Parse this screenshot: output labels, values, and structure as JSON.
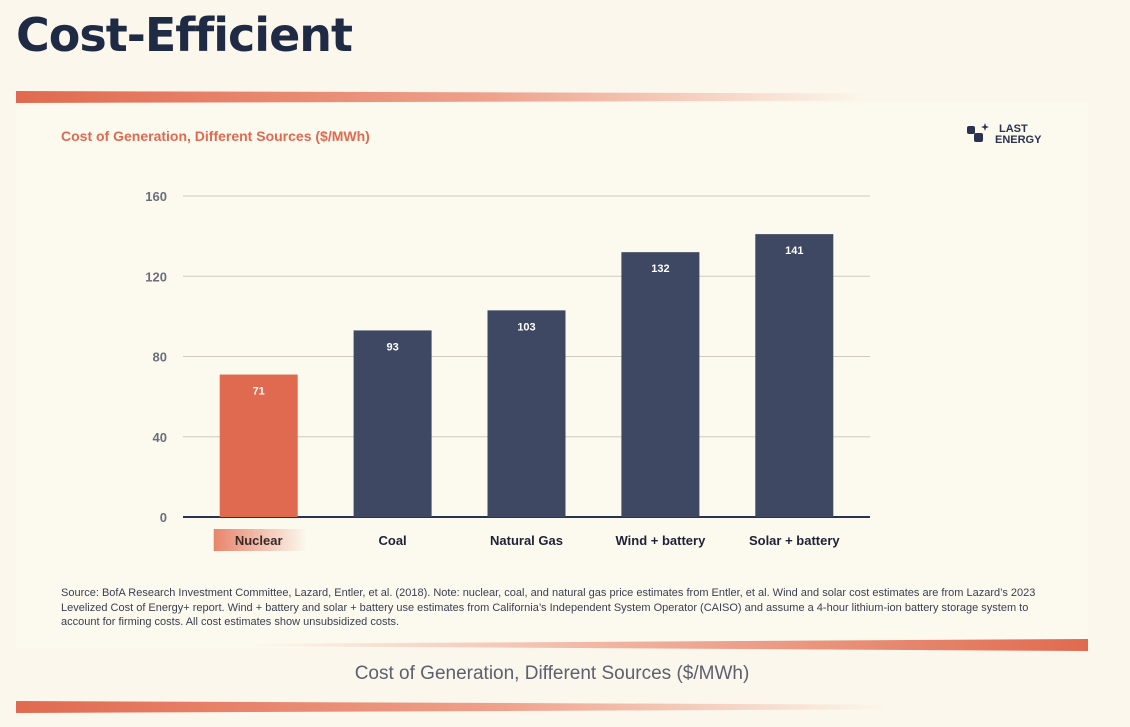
{
  "page_title": "Cost-Efficient",
  "logo": {
    "line1": "LAST",
    "line2": "ENERGY",
    "icon": "last-energy-logo-icon"
  },
  "source_note": "Source: BofA Research Investment Committee, Lazard, Entler, et al. (2018). Note: nuclear, coal, and natural gas price estimates from Entler, et al. Wind and solar cost estimates are from Lazard’s 2023 Levelized Cost of Energy+ report. Wind + battery and solar + battery use estimates from California’s Independent System Operator (CAISO) and assume a 4-hour lithium-ion battery storage system to account for firming costs. All cost estimates show unsubsidized costs.",
  "caption": "Cost of Generation, Different Sources ($/MWh)",
  "colors": {
    "highlight": "#e06a4f",
    "bar": "#3f4862",
    "title": "#1f2a44",
    "grid": "#cfcabd"
  },
  "chart_data": {
    "type": "bar",
    "title": "Cost of Generation, Different Sources ($/MWh)",
    "categories": [
      "Nuclear",
      "Coal",
      "Natural Gas",
      "Wind + battery",
      "Solar + battery"
    ],
    "values": [
      71,
      93,
      103,
      132,
      141
    ],
    "highlight_category": "Nuclear",
    "data_labels": [
      "71",
      "93",
      "103",
      "132",
      "141"
    ],
    "xlabel": "",
    "ylabel": "",
    "ylim": [
      0,
      160
    ],
    "yticks": [
      0,
      40,
      80,
      120,
      160
    ],
    "grid": true,
    "legend": "none"
  }
}
